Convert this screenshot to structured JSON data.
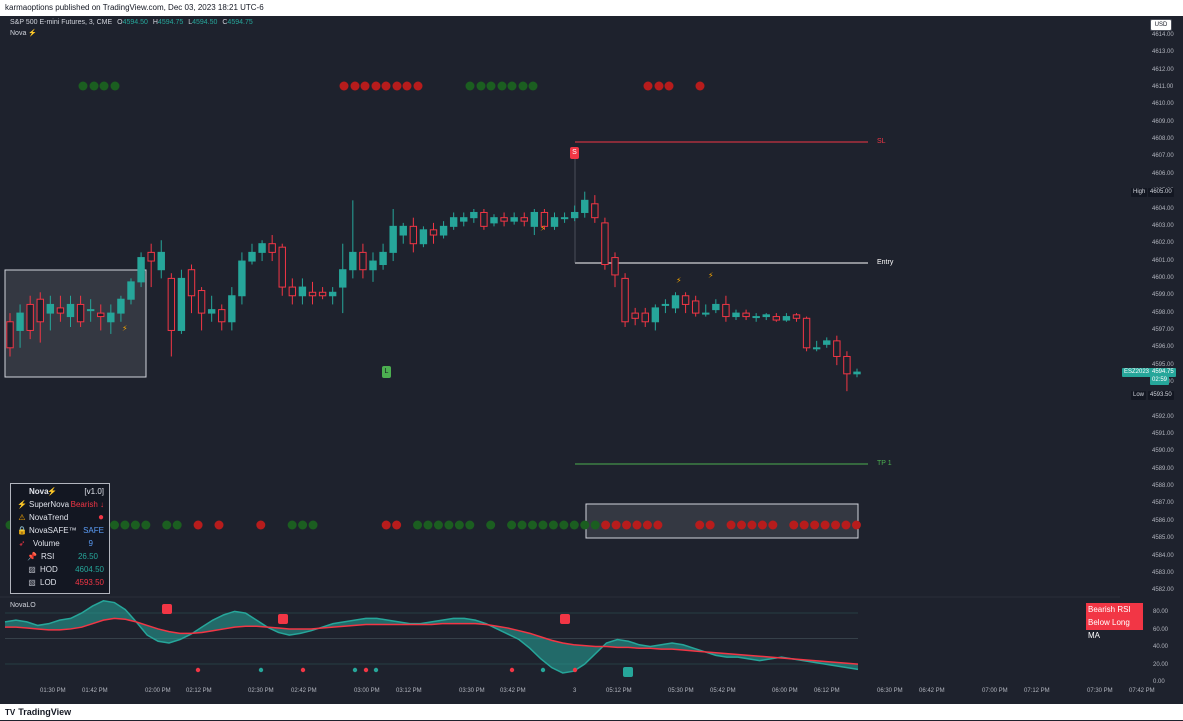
{
  "publish_bar": {
    "text": "karmaoptions published on TradingView.com, Dec 03, 2023 18:21 UTC-6"
  },
  "symbol": {
    "name": "S&P 500 E-mini Futures, 3, CME",
    "o_label": "O",
    "o": "4594.50",
    "h_label": "H",
    "h": "4594.75",
    "l_label": "L",
    "l": "4594.50",
    "c_label": "C",
    "c": "4594.75"
  },
  "indicator_tag": "Nova",
  "currency_button": "USD",
  "price_axis": {
    "ticks": [
      "4614.00",
      "4613.00",
      "4612.00",
      "4611.00",
      "4610.00",
      "4609.00",
      "4608.00",
      "4607.00",
      "4606.00",
      "4605.00",
      "4604.00",
      "4603.00",
      "4602.00",
      "4601.00",
      "4600.00",
      "4599.00",
      "4598.00",
      "4597.00",
      "4596.00",
      "4595.00",
      "4594.00",
      "4593.00",
      "4592.00",
      "4591.00",
      "4590.00",
      "4589.00",
      "4588.00",
      "4587.00",
      "4586.00",
      "4585.00",
      "4584.00",
      "4583.00",
      "4582.00"
    ],
    "high_label": "High",
    "high_value": "4605.00",
    "low_label": "Low",
    "low_value": "4593.50",
    "current_symbol": "ESZ2023",
    "current_price": "4594.75",
    "countdown": "02:59"
  },
  "levels": {
    "sl": "SL",
    "entry": "Entry",
    "tp": "TP 1"
  },
  "signals": {
    "short_marker": "S",
    "long_marker": "L"
  },
  "status_panel": {
    "title": "Nova",
    "version": "[v1.0]",
    "rows": [
      {
        "icon": "lightning-icon",
        "label": "SuperNova",
        "value": "Bearish ↓",
        "color": "#f23645"
      },
      {
        "icon": "warning-icon",
        "label": "NovaTrend",
        "value": "●",
        "color": "#f23645"
      },
      {
        "icon": "lock-icon",
        "label": "NovaSAFE™",
        "value": "SAFE",
        "color": "#5b9cf6"
      },
      {
        "icon": "rocket-icon",
        "label": "Volume",
        "value": "9",
        "color": "#5b9cf6"
      },
      {
        "icon": "pin-icon",
        "label": "RSI",
        "value": "26.50",
        "color": "#26a69a"
      },
      {
        "icon": "chart-up-icon",
        "label": "HOD",
        "value": "4604.50",
        "color": "#26a69a"
      },
      {
        "icon": "chart-down-icon",
        "label": "LOD",
        "value": "4593.50",
        "color": "#f23645"
      }
    ]
  },
  "oscillator": {
    "name": "NovaLO",
    "axis": [
      "80.00",
      "60.00",
      "40.00",
      "20.00",
      "0.00"
    ],
    "alert_line1": "Bearish RSI",
    "alert_line2": "Below Long MA"
  },
  "time_axis": [
    "01:30 PM",
    "01:42 PM",
    "02:00 PM",
    "02:12 PM",
    "02:30 PM",
    "02:42 PM",
    "03:00 PM",
    "03:12 PM",
    "03:30 PM",
    "03:42 PM",
    "3",
    "05:12 PM",
    "05:30 PM",
    "05:42 PM",
    "06:00 PM",
    "06:12 PM",
    "06:30 PM",
    "06:42 PM",
    "07:00 PM",
    "07:12 PM",
    "07:30 PM",
    "07:42 PM"
  ],
  "footer": {
    "brand": "TradingView"
  },
  "colors": {
    "bull": "#26a69a",
    "bear": "#f23645",
    "dot_green": "#1b5e20",
    "dot_red": "#b71c1c",
    "background": "#1e222d"
  }
}
